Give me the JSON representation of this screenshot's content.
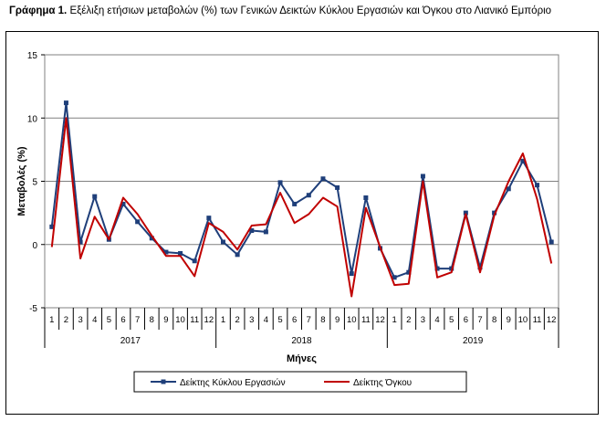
{
  "chart_data": {
    "type": "line",
    "title_bold": "Γράφημα 1.",
    "title_rest": " Εξέλιξη ετήσιων μεταβολών (%) των Γενικών Δεικτών Κύκλου Εργασιών και Όγκου στο Λιανικό Εμπόριο",
    "xlabel": "Μήνες",
    "ylabel": "Μεταβολές  (%)",
    "ylim": [
      -5,
      15
    ],
    "yticks": [
      -5,
      0,
      5,
      10,
      15
    ],
    "grid": true,
    "legend_position": "bottom",
    "month_labels": [
      "1",
      "2",
      "3",
      "4",
      "5",
      "6",
      "7",
      "8",
      "9",
      "10",
      "11",
      "12"
    ],
    "years": [
      "2017",
      "2018",
      "2019"
    ],
    "series": [
      {
        "name": "Δείκτης Κύκλου Εργασιών",
        "color": "#1f3f7a",
        "marker": "square",
        "values": [
          1.4,
          11.2,
          0.2,
          3.8,
          0.4,
          3.2,
          1.8,
          0.5,
          -0.6,
          -0.7,
          -1.3,
          2.1,
          0.2,
          -0.8,
          1.1,
          1.0,
          4.9,
          3.2,
          3.9,
          5.2,
          4.5,
          -2.3,
          3.7,
          -0.3,
          -2.6,
          -2.2,
          5.4,
          -1.9,
          -1.9,
          2.5,
          -1.8,
          2.5,
          4.4,
          6.6,
          4.7,
          0.2
        ]
      },
      {
        "name": "Δείκτης Όγκου",
        "color": "#c00000",
        "marker": "none",
        "values": [
          -0.2,
          10.0,
          -1.1,
          2.2,
          0.4,
          3.7,
          2.4,
          0.7,
          -0.9,
          -0.9,
          -2.5,
          1.7,
          1.0,
          -0.4,
          1.5,
          1.6,
          4.1,
          1.7,
          2.4,
          3.7,
          3.0,
          -4.1,
          2.9,
          -0.2,
          -3.2,
          -3.1,
          5.0,
          -2.6,
          -2.2,
          2.4,
          -2.2,
          2.3,
          5.0,
          7.2,
          3.6,
          -1.5
        ]
      }
    ]
  }
}
